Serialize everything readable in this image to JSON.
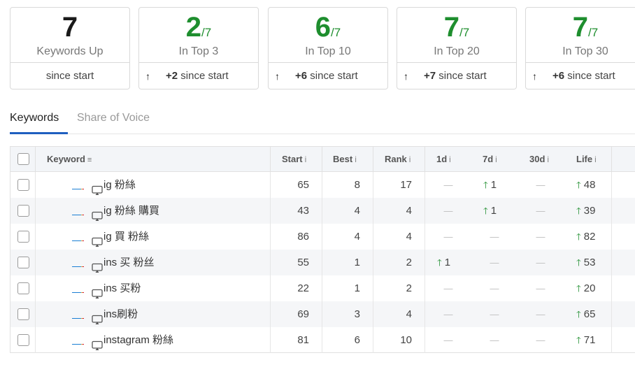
{
  "summary_cards": [
    {
      "value": "7",
      "denominator": "",
      "label": "Keywords Up",
      "arrow": "",
      "delta": "",
      "since": "since start",
      "green": false
    },
    {
      "value": "2",
      "denominator": "/7",
      "label": "In Top 3",
      "arrow": "↑",
      "delta": "+2",
      "since": "since start",
      "green": true
    },
    {
      "value": "6",
      "denominator": "/7",
      "label": "In Top 10",
      "arrow": "↑",
      "delta": "+6",
      "since": "since start",
      "green": true
    },
    {
      "value": "7",
      "denominator": "/7",
      "label": "In Top 20",
      "arrow": "↑",
      "delta": "+7",
      "since": "since start",
      "green": true
    },
    {
      "value": "7",
      "denominator": "/7",
      "label": "In Top 30",
      "arrow": "↑",
      "delta": "+6",
      "since": "since start",
      "green": true
    }
  ],
  "tabs": [
    {
      "label": "Keywords",
      "active": true
    },
    {
      "label": "Share of Voice",
      "active": false
    }
  ],
  "table": {
    "headers": {
      "keyword": "Keyword",
      "start": "Start",
      "best": "Best",
      "rank": "Rank",
      "d1": "1d",
      "d7": "7d",
      "d30": "30d",
      "life": "Life",
      "info_glyph": "i",
      "sort_glyph": "≡"
    },
    "dash": "—",
    "up_arrow": "🡑",
    "rows": [
      {
        "keyword": "ig 粉絲",
        "start": "65",
        "best": "8",
        "rank": "17",
        "d1": "",
        "d7": "1",
        "d30": "",
        "life": "48"
      },
      {
        "keyword": "ig 粉絲 購買",
        "start": "43",
        "best": "4",
        "rank": "4",
        "d1": "",
        "d7": "1",
        "d30": "",
        "life": "39"
      },
      {
        "keyword": "ig 買 粉絲",
        "start": "86",
        "best": "4",
        "rank": "4",
        "d1": "",
        "d7": "",
        "d30": "",
        "life": "82"
      },
      {
        "keyword": "ins 买 粉丝",
        "start": "55",
        "best": "1",
        "rank": "2",
        "d1": "1",
        "d7": "",
        "d30": "",
        "life": "53"
      },
      {
        "keyword": "ins 买粉",
        "start": "22",
        "best": "1",
        "rank": "2",
        "d1": "",
        "d7": "",
        "d30": "",
        "life": "20"
      },
      {
        "keyword": "ins刷粉",
        "start": "69",
        "best": "3",
        "rank": "4",
        "d1": "",
        "d7": "",
        "d30": "",
        "life": "65"
      },
      {
        "keyword": "instagram 粉絲",
        "start": "81",
        "best": "6",
        "rank": "10",
        "d1": "",
        "d7": "",
        "d30": "",
        "life": "71"
      }
    ]
  },
  "colors": {
    "accent_green": "#1e8e2e",
    "tab_blue": "#1f5fbf"
  },
  "icons": {
    "flag": "flag-icon",
    "device": "desktop-icon"
  }
}
